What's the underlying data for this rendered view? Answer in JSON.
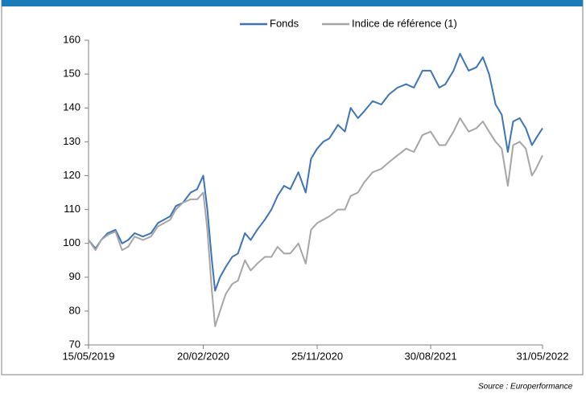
{
  "chart_data": {
    "type": "line",
    "x": [
      "15/05/2019",
      "01/06/2019",
      "15/06/2019",
      "01/07/2019",
      "20/07/2019",
      "05/08/2019",
      "20/08/2019",
      "05/09/2019",
      "25/09/2019",
      "15/10/2019",
      "01/11/2019",
      "01/12/2019",
      "15/12/2019",
      "01/01/2020",
      "20/01/2020",
      "05/02/2020",
      "20/02/2020",
      "01/03/2020",
      "12/03/2020",
      "20/03/2020",
      "01/04/2020",
      "15/04/2020",
      "01/05/2020",
      "15/05/2020",
      "01/06/2020",
      "15/06/2020",
      "01/07/2020",
      "20/07/2020",
      "05/08/2020",
      "20/08/2020",
      "05/09/2020",
      "20/09/2020",
      "10/10/2020",
      "28/10/2020",
      "10/11/2020",
      "25/11/2020",
      "10/12/2020",
      "25/12/2020",
      "15/01/2021",
      "01/02/2021",
      "15/02/2021",
      "05/03/2021",
      "20/03/2021",
      "10/04/2021",
      "01/05/2021",
      "20/05/2021",
      "10/06/2021",
      "01/07/2021",
      "20/07/2021",
      "10/08/2021",
      "30/08/2021",
      "20/09/2021",
      "05/10/2021",
      "25/10/2021",
      "10/11/2021",
      "01/12/2021",
      "20/12/2021",
      "05/01/2022",
      "20/01/2022",
      "05/02/2022",
      "20/02/2022",
      "07/03/2022",
      "20/03/2022",
      "05/04/2022",
      "20/04/2022",
      "05/05/2022",
      "15/05/2022",
      "31/05/2022"
    ],
    "series": [
      {
        "name": "Fonds",
        "color": "#3f73b8",
        "values": [
          101,
          98.5,
          101,
          103,
          104,
          100,
          101,
          103,
          102,
          103,
          106,
          108,
          111,
          112,
          115,
          116,
          120,
          110,
          95,
          86,
          90,
          93,
          96,
          97,
          103,
          101,
          104,
          107,
          110,
          114,
          117,
          116,
          121,
          115,
          125,
          128,
          130,
          131,
          135,
          133,
          140,
          137,
          139,
          142,
          141,
          144,
          146,
          147,
          146,
          151,
          151,
          146,
          147,
          151,
          156,
          151,
          152,
          155,
          150,
          141,
          138,
          127,
          136,
          137,
          134,
          129,
          131,
          134
        ]
      },
      {
        "name": "Indice de référence (1)",
        "color": "#a6a6a6",
        "values": [
          101,
          98,
          101,
          102.5,
          103.5,
          98,
          99,
          102,
          101,
          102,
          105,
          107,
          110,
          112,
          113,
          113,
          115,
          104,
          86,
          75.5,
          80,
          85,
          88,
          89,
          95,
          92,
          94,
          96,
          96,
          99,
          97,
          97,
          100,
          94,
          104,
          106,
          107,
          108,
          110,
          110,
          114,
          115,
          118,
          121,
          122,
          124,
          126,
          128,
          127,
          132,
          133,
          129,
          129,
          133,
          137,
          133,
          134,
          136,
          133,
          130,
          128,
          117,
          129,
          130,
          128,
          120,
          122,
          126
        ]
      }
    ],
    "xlim": [
      "15/05/2019",
      "31/05/2022"
    ],
    "xticks": [
      "15/05/2019",
      "20/02/2020",
      "25/11/2020",
      "30/08/2021",
      "31/05/2022"
    ],
    "ylim": [
      70,
      160
    ],
    "yticks": [
      70,
      80,
      90,
      100,
      110,
      120,
      130,
      140,
      150,
      160
    ],
    "legend": "top",
    "source": "Source : Europerformance"
  }
}
